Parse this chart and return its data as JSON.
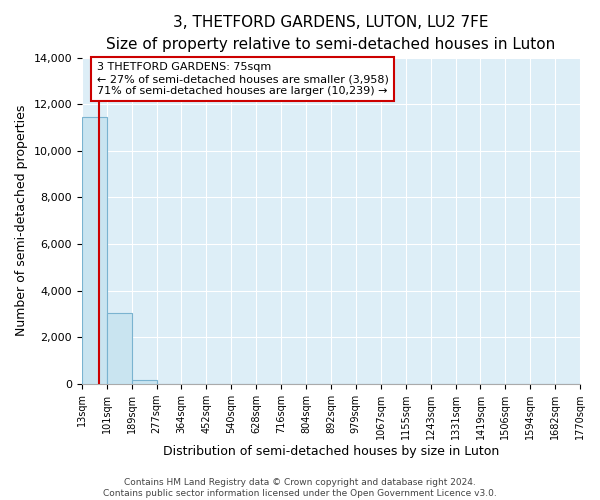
{
  "title": "3, THETFORD GARDENS, LUTON, LU2 7FE",
  "subtitle": "Size of property relative to semi-detached houses in Luton",
  "xlabel": "Distribution of semi-detached houses by size in Luton",
  "ylabel": "Number of semi-detached properties",
  "bar_edges": [
    13,
    101,
    189,
    277,
    364,
    452,
    540,
    628,
    716,
    804,
    892,
    979,
    1067,
    1155,
    1243,
    1331,
    1419,
    1506,
    1594,
    1682,
    1770
  ],
  "bar_heights": [
    11450,
    3050,
    150,
    0,
    0,
    0,
    0,
    0,
    0,
    0,
    0,
    0,
    0,
    0,
    0,
    0,
    0,
    0,
    0,
    0
  ],
  "bar_color": "#c9e4f0",
  "bar_edge_color": "#7ab3d0",
  "property_size": 75,
  "property_line_color": "#cc0000",
  "annotation_line1": "3 THETFORD GARDENS: 75sqm",
  "annotation_line2": "← 27% of semi-detached houses are smaller (3,958)",
  "annotation_line3": "71% of semi-detached houses are larger (10,239) →",
  "annotation_box_color": "#ffffff",
  "annotation_box_edge_color": "#cc0000",
  "ylim": [
    0,
    14000
  ],
  "yticks": [
    0,
    2000,
    4000,
    6000,
    8000,
    10000,
    12000,
    14000
  ],
  "tick_labels": [
    "13sqm",
    "101sqm",
    "189sqm",
    "277sqm",
    "364sqm",
    "452sqm",
    "540sqm",
    "628sqm",
    "716sqm",
    "804sqm",
    "892sqm",
    "979sqm",
    "1067sqm",
    "1155sqm",
    "1243sqm",
    "1331sqm",
    "1419sqm",
    "1506sqm",
    "1594sqm",
    "1682sqm",
    "1770sqm"
  ],
  "footer_line1": "Contains HM Land Registry data © Crown copyright and database right 2024.",
  "footer_line2": "Contains public sector information licensed under the Open Government Licence v3.0.",
  "fig_background": "#ffffff",
  "plot_background": "#ddeef7",
  "grid_color": "#ffffff",
  "title_fontsize": 11,
  "subtitle_fontsize": 9,
  "axis_label_fontsize": 9,
  "tick_fontsize": 7,
  "annotation_fontsize": 8,
  "footer_fontsize": 6.5
}
